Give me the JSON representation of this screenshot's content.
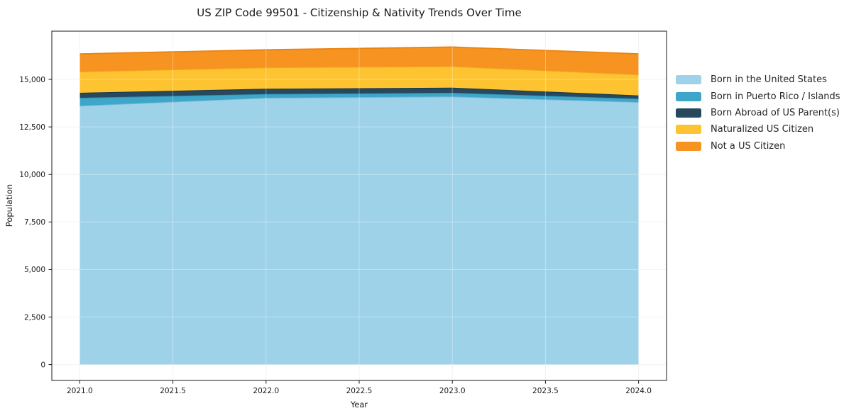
{
  "chart_data": {
    "type": "area",
    "stacked": true,
    "title": "US ZIP Code 99501 - Citizenship & Nativity Trends Over Time",
    "xlabel": "Year",
    "ylabel": "Population",
    "x": [
      2021,
      2022,
      2023,
      2024
    ],
    "series": [
      {
        "name": "Born in the United States",
        "color": "#9ed2e9",
        "edge_color": "#79badb",
        "values": [
          13610,
          14030,
          14095,
          13800
        ]
      },
      {
        "name": "Born in Puerto Rico / Islands",
        "color": "#3ea7c9",
        "edge_color": "#2e91b4",
        "values": [
          420,
          200,
          200,
          185
        ]
      },
      {
        "name": "Born Abroad of US Parent(s)",
        "color": "#27495e",
        "edge_color": "#1a3648",
        "values": [
          262,
          276,
          272,
          172
        ]
      },
      {
        "name": "Naturalized US Citizen",
        "color": "#fdc330",
        "edge_color": "#f2a91f",
        "values": [
          1117,
          1116,
          1117,
          1094
        ]
      },
      {
        "name": "Not a US Citizen",
        "color": "#f79421",
        "edge_color": "#e98312",
        "values": [
          930,
          932,
          1018,
          1090
        ]
      }
    ],
    "xlim": [
      2020.85,
      2024.15
    ],
    "ylim": [
      -835,
      17535
    ],
    "x_ticks": [
      {
        "v": 2021.0,
        "label": "2021.0"
      },
      {
        "v": 2021.5,
        "label": "2021.5"
      },
      {
        "v": 2022.0,
        "label": "2022.0"
      },
      {
        "v": 2022.5,
        "label": "2022.5"
      },
      {
        "v": 2023.0,
        "label": "2023.0"
      },
      {
        "v": 2023.5,
        "label": "2023.5"
      },
      {
        "v": 2024.0,
        "label": "2024.0"
      }
    ],
    "y_ticks": [
      {
        "v": 0,
        "label": "0"
      },
      {
        "v": 2500,
        "label": "2,500"
      },
      {
        "v": 5000,
        "label": "5,000"
      },
      {
        "v": 7500,
        "label": "7,500"
      },
      {
        "v": 10000,
        "label": "10,000"
      },
      {
        "v": 12500,
        "label": "12,500"
      },
      {
        "v": 15000,
        "label": "15,000"
      }
    ],
    "grid": true,
    "legend_position": "outside-right",
    "colors": {
      "spine": "#1a1a1a",
      "grid_under": "rgba(0,0,0,0.07)",
      "grid_over": "rgba(255,255,255,0.35)"
    }
  }
}
